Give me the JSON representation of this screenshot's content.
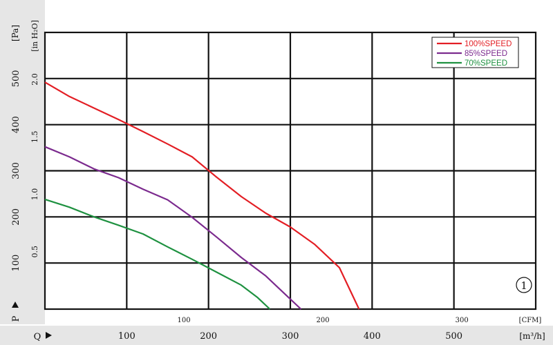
{
  "chart_data": {
    "type": "line",
    "y_axis_pa": {
      "label": "[Pa]",
      "ticks": [
        "100",
        "200",
        "300",
        "400",
        "500"
      ],
      "range": [
        0,
        600
      ]
    },
    "y_axis_inh2o": {
      "label": "[in H₂O]",
      "ticks": [
        "0.5",
        "1.0",
        "1.5",
        "2.0"
      ]
    },
    "x_axis_m3h": {
      "label": "[m³/h]",
      "ticks": [
        "100",
        "200",
        "300",
        "400",
        "500"
      ],
      "range": [
        0,
        600
      ]
    },
    "x_axis_cfm": {
      "label": "[CFM]",
      "ticks": [
        "100",
        "200",
        "300"
      ]
    },
    "p_label": "P",
    "q_label": "Q",
    "grid": true,
    "legend_position": "top-right",
    "curve_number": "1",
    "series": [
      {
        "name": "100%SPEED",
        "color": "#e31e24",
        "points": [
          [
            0,
            492
          ],
          [
            30,
            461
          ],
          [
            60,
            436
          ],
          [
            90,
            411
          ],
          [
            120,
            385
          ],
          [
            150,
            358
          ],
          [
            180,
            330
          ],
          [
            210,
            286
          ],
          [
            240,
            244
          ],
          [
            270,
            208
          ],
          [
            300,
            178
          ],
          [
            330,
            140
          ],
          [
            360,
            90
          ],
          [
            384,
            0
          ]
        ]
      },
      {
        "name": "85%SPEED",
        "color": "#7b2a8e",
        "points": [
          [
            0,
            352
          ],
          [
            30,
            330
          ],
          [
            60,
            304
          ],
          [
            90,
            285
          ],
          [
            120,
            260
          ],
          [
            150,
            237
          ],
          [
            180,
            199
          ],
          [
            210,
            156
          ],
          [
            240,
            112
          ],
          [
            270,
            72
          ],
          [
            295,
            30
          ],
          [
            313,
            0
          ]
        ]
      },
      {
        "name": "70%SPEED",
        "color": "#1e9140",
        "points": [
          [
            0,
            238
          ],
          [
            30,
            221
          ],
          [
            60,
            200
          ],
          [
            90,
            182
          ],
          [
            120,
            163
          ],
          [
            150,
            135
          ],
          [
            180,
            108
          ],
          [
            210,
            80
          ],
          [
            240,
            52
          ],
          [
            260,
            25
          ],
          [
            275,
            0
          ]
        ]
      }
    ]
  }
}
